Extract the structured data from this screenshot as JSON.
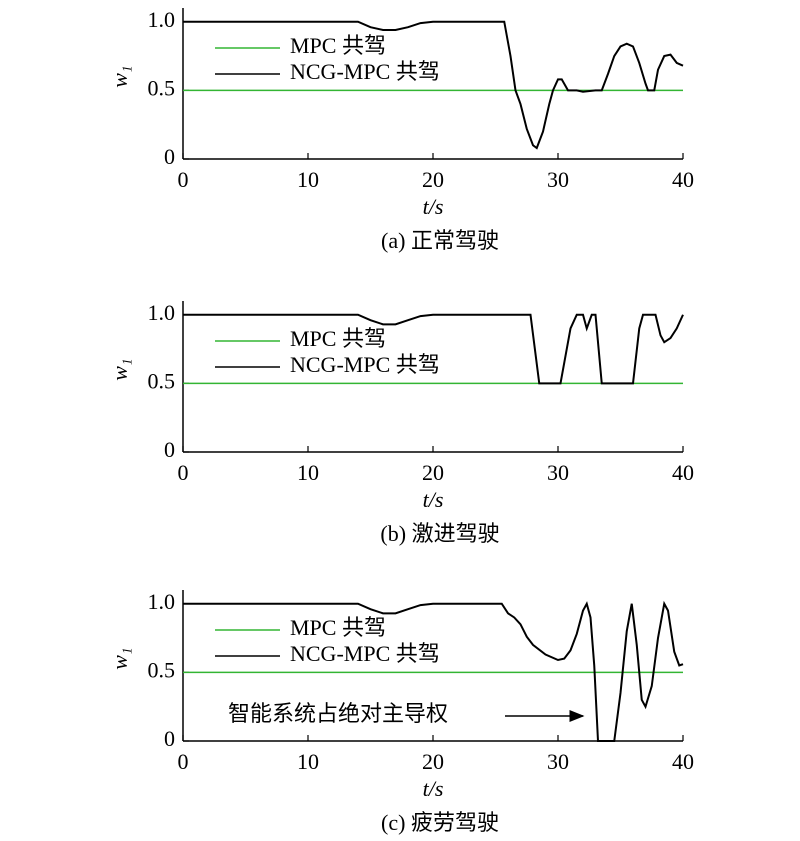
{
  "chart_data": [
    {
      "type": "line",
      "caption": "(a) 正常驾驶",
      "xlabel": "t/s",
      "ylabel": "w₁",
      "xlim": [
        0,
        40
      ],
      "xticks": [
        0,
        10,
        20,
        30,
        40
      ],
      "ylim": [
        0,
        1.1
      ],
      "yticks": [
        0,
        0.5,
        {
          "value": 1,
          "label": "1.0"
        }
      ],
      "legend": "upper left",
      "series": [
        {
          "name": "MPC 共驾",
          "color": "#33b533",
          "x": [
            0,
            40
          ],
          "values": [
            0.5,
            0.5
          ]
        },
        {
          "name": "NCG-MPC 共驾",
          "color": "#000000",
          "x": [
            0,
            14,
            15,
            16,
            17,
            18,
            19,
            20,
            25.7,
            26.2,
            26.6,
            27,
            27.5,
            28,
            28.3,
            28.8,
            29.3,
            29.6,
            30,
            30.3,
            30.8,
            31.5,
            32,
            33,
            33.5,
            34,
            34.5,
            35,
            35.5,
            36,
            36.5,
            37,
            37.2,
            37.7,
            38,
            38.5,
            39,
            39.5,
            40
          ],
          "values": [
            1,
            1,
            0.96,
            0.94,
            0.94,
            0.96,
            0.99,
            1,
            1,
            0.75,
            0.5,
            0.4,
            0.22,
            0.1,
            0.08,
            0.2,
            0.4,
            0.5,
            0.58,
            0.58,
            0.5,
            0.5,
            0.49,
            0.5,
            0.5,
            0.62,
            0.75,
            0.82,
            0.84,
            0.82,
            0.7,
            0.55,
            0.5,
            0.5,
            0.65,
            0.75,
            0.76,
            0.7,
            0.68
          ]
        }
      ]
    },
    {
      "type": "line",
      "caption": "(b) 激进驾驶",
      "xlabel": "t/s",
      "ylabel": "w₁",
      "xlim": [
        0,
        40
      ],
      "xticks": [
        0,
        10,
        20,
        30,
        40
      ],
      "ylim": [
        0,
        1.1
      ],
      "yticks": [
        0,
        0.5,
        {
          "value": 1,
          "label": "1.0"
        }
      ],
      "legend": "upper left",
      "series": [
        {
          "name": "MPC 共驾",
          "color": "#33b533",
          "x": [
            0,
            40
          ],
          "values": [
            0.5,
            0.5
          ]
        },
        {
          "name": "NCG-MPC 共驾",
          "color": "#000000",
          "x": [
            0,
            14,
            15,
            16,
            17,
            18,
            19,
            20,
            27.8,
            28.5,
            30.2,
            31,
            31.5,
            32,
            32.3,
            32.7,
            33,
            33.5,
            36,
            36.5,
            36.8,
            37.8,
            38.2,
            38.5,
            39,
            39.5,
            40
          ],
          "values": [
            1,
            1,
            0.96,
            0.93,
            0.93,
            0.96,
            0.99,
            1,
            1,
            0.5,
            0.5,
            0.9,
            1,
            1,
            0.9,
            1,
            1,
            0.5,
            0.5,
            0.9,
            1,
            1,
            0.85,
            0.8,
            0.83,
            0.9,
            1
          ]
        }
      ]
    },
    {
      "type": "line",
      "caption": "(c) 疲劳驾驶",
      "xlabel": "t/s",
      "ylabel": "w₁",
      "xlim": [
        0,
        40
      ],
      "xticks": [
        0,
        10,
        20,
        30,
        40
      ],
      "ylim": [
        0,
        1.1
      ],
      "yticks": [
        0,
        0.5,
        {
          "value": 1,
          "label": "1.0"
        }
      ],
      "legend": "upper left",
      "annotation": "智能系统占绝对主导权",
      "series": [
        {
          "name": "MPC 共驾",
          "color": "#33b533",
          "x": [
            0,
            40
          ],
          "values": [
            0.5,
            0.5
          ]
        },
        {
          "name": "NCG-MPC 共驾",
          "color": "#000000",
          "x": [
            0,
            14,
            15,
            16,
            17,
            18,
            19,
            20,
            25.5,
            26,
            26.5,
            27,
            27.5,
            28,
            29,
            30,
            30.5,
            31,
            31.5,
            32,
            32.3,
            32.6,
            32.9,
            33.2,
            34.5,
            35,
            35.5,
            35.9,
            36.3,
            36.7,
            37,
            37.5,
            38,
            38.5,
            38.8,
            39.3,
            39.7,
            40
          ],
          "values": [
            1,
            1,
            0.96,
            0.93,
            0.93,
            0.96,
            0.99,
            1,
            1,
            0.93,
            0.9,
            0.85,
            0.76,
            0.7,
            0.63,
            0.59,
            0.6,
            0.66,
            0.78,
            0.95,
            1,
            0.9,
            0.55,
            0,
            0,
            0.35,
            0.8,
            1,
            0.7,
            0.3,
            0.25,
            0.4,
            0.75,
            1,
            0.95,
            0.65,
            0.55,
            0.56
          ]
        }
      ]
    }
  ]
}
